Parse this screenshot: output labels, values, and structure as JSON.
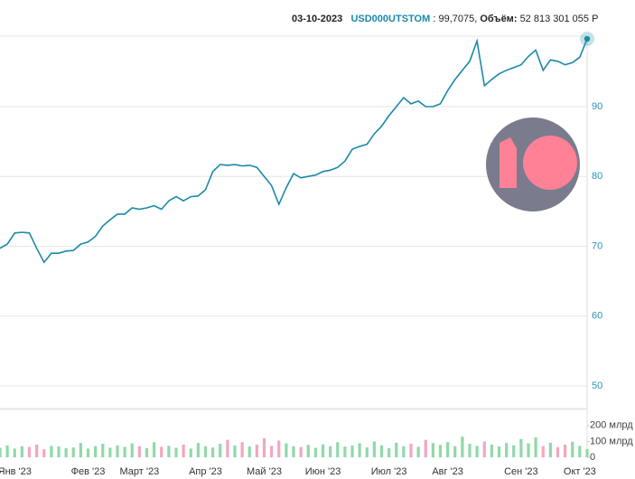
{
  "chart_data": {
    "type": "line",
    "header": {
      "date": "03-10-2023",
      "ticker": "USD000UTSTOM",
      "price": ": 99,7075,",
      "volume_label": "Объём:",
      "volume": "52 813 301 055 Р"
    },
    "categories": [
      null,
      null,
      "Янв '23",
      null,
      null,
      null,
      null,
      null,
      null,
      null,
      null,
      null,
      "Фев '23",
      null,
      null,
      null,
      null,
      null,
      null,
      "Март '23",
      null,
      null,
      null,
      null,
      null,
      null,
      null,
      null,
      "Апр '23",
      null,
      null,
      null,
      null,
      null,
      null,
      null,
      "Май '23",
      null,
      null,
      null,
      null,
      null,
      null,
      null,
      "Июн '23",
      null,
      null,
      null,
      null,
      null,
      null,
      null,
      null,
      "Июл '23",
      null,
      null,
      null,
      null,
      null,
      null,
      null,
      "Авг '23",
      null,
      null,
      null,
      null,
      null,
      null,
      null,
      null,
      null,
      "Сен '23",
      null,
      null,
      null,
      null,
      null,
      null,
      null,
      "Окт '23",
      null
    ],
    "series": [
      {
        "name": "USD000UTSTOM",
        "color": "#1a8aa8",
        "values": [
          69.7,
          70.3,
          71.9,
          72.0,
          71.9,
          69.7,
          67.7,
          69.0,
          69.0,
          69.3,
          69.4,
          70.3,
          70.6,
          71.4,
          72.9,
          73.8,
          74.6,
          74.6,
          75.5,
          75.3,
          75.5,
          75.8,
          75.3,
          76.5,
          77.1,
          76.5,
          77.1,
          77.2,
          78.1,
          80.7,
          81.7,
          81.6,
          81.7,
          81.5,
          81.6,
          81.3,
          80.0,
          78.7,
          76.0,
          78.4,
          80.4,
          79.8,
          80.0,
          80.2,
          80.7,
          80.9,
          81.3,
          82.2,
          83.9,
          84.3,
          84.6,
          86.1,
          87.2,
          88.7,
          90.0,
          91.3,
          90.4,
          90.8,
          90.0,
          90.0,
          90.4,
          92.3,
          93.9,
          95.2,
          96.5,
          99.4,
          93.0,
          93.9,
          94.7,
          95.2,
          95.6,
          96.0,
          97.2,
          98.1,
          95.2,
          96.7,
          96.5,
          96.0,
          96.3,
          97.1,
          99.7075
        ]
      },
      {
        "name": "Объём",
        "type": "bar",
        "axis": "y2",
        "up_color": "#8fd9a8",
        "down_color": "#f2a7bd",
        "values": [
          60,
          75,
          55,
          70,
          65,
          80,
          50,
          72,
          68,
          58,
          62,
          90,
          55,
          70,
          85,
          60,
          75,
          65,
          88,
          70,
          58,
          95,
          66,
          72,
          60,
          80,
          55,
          90,
          70,
          62,
          85,
          110,
          75,
          95,
          68,
          80,
          120,
          72,
          105,
          88,
          70,
          65,
          78,
          60,
          82,
          70,
          95,
          68,
          74,
          88,
          62,
          100,
          76,
          58,
          92,
          70,
          85,
          66,
          110,
          90,
          78,
          96,
          70,
          130,
          85,
          72,
          100,
          80,
          68,
          90,
          76,
          115,
          88,
          125,
          70,
          92,
          64,
          80,
          98,
          72,
          52.813301055
        ]
      }
    ],
    "ylim": [
      48.3,
      100.1
    ],
    "yticks": [
      50,
      60,
      70,
      80,
      90
    ],
    "y2lim": [
      0,
      290
    ],
    "y2ticks": [
      0,
      {
        "value": 100,
        "label": "100 млрд"
      },
      {
        "value": 200,
        "label": "200 млрд"
      }
    ],
    "grid": true
  }
}
